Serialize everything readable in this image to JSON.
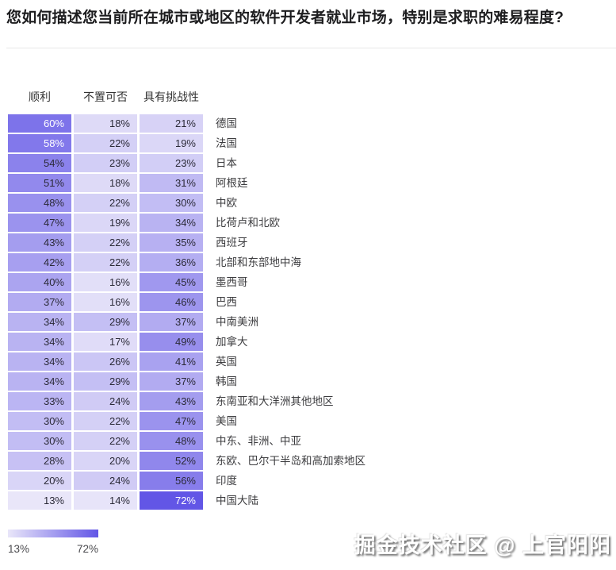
{
  "title": "您如何描述您当前所在城市或地区的软件开发者就业市场，特别是求职的难易程度?",
  "legend": {
    "min_label": "13%",
    "max_label": "72%"
  },
  "watermark": "掘金技术社区 @ 上官阳阳",
  "colors": {
    "scale_min": "#e9e6f9",
    "scale_max": "#6256e6",
    "cell_text_dark": "#2b2a38",
    "cell_text_light": "#ffffff"
  },
  "chart_data": {
    "type": "heatmap",
    "title": "您如何描述您当前所在城市或地区的软件开发者就业市场，特别是求职的难易程度?",
    "unit": "%",
    "columns": [
      "顺利",
      "不置可否",
      "具有挑战性"
    ],
    "rows": [
      {
        "label": "德国",
        "values": [
          60,
          18,
          21
        ]
      },
      {
        "label": "法国",
        "values": [
          58,
          22,
          19
        ]
      },
      {
        "label": "日本",
        "values": [
          54,
          23,
          23
        ]
      },
      {
        "label": "阿根廷",
        "values": [
          51,
          18,
          31
        ]
      },
      {
        "label": "中欧",
        "values": [
          48,
          22,
          30
        ]
      },
      {
        "label": "比荷卢和北欧",
        "values": [
          47,
          19,
          34
        ]
      },
      {
        "label": "西班牙",
        "values": [
          43,
          22,
          35
        ]
      },
      {
        "label": "北部和东部地中海",
        "values": [
          42,
          22,
          36
        ]
      },
      {
        "label": "墨西哥",
        "values": [
          40,
          16,
          45
        ]
      },
      {
        "label": "巴西",
        "values": [
          37,
          16,
          46
        ]
      },
      {
        "label": "中南美洲",
        "values": [
          34,
          29,
          37
        ]
      },
      {
        "label": "加拿大",
        "values": [
          34,
          17,
          49
        ]
      },
      {
        "label": "英国",
        "values": [
          34,
          26,
          41
        ]
      },
      {
        "label": "韩国",
        "values": [
          34,
          29,
          37
        ]
      },
      {
        "label": "东南亚和大洋洲其他地区",
        "values": [
          33,
          24,
          43
        ]
      },
      {
        "label": "美国",
        "values": [
          30,
          22,
          47
        ]
      },
      {
        "label": "中东、非洲、中亚",
        "values": [
          30,
          22,
          48
        ]
      },
      {
        "label": "东欧、巴尔干半岛和高加索地区",
        "values": [
          28,
          20,
          52
        ]
      },
      {
        "label": "印度",
        "values": [
          20,
          24,
          56
        ]
      },
      {
        "label": "中国大陆",
        "values": [
          13,
          14,
          72
        ]
      }
    ],
    "value_range": [
      13,
      72
    ],
    "white_text_threshold": 58,
    "legend_position": "bottom-left"
  }
}
